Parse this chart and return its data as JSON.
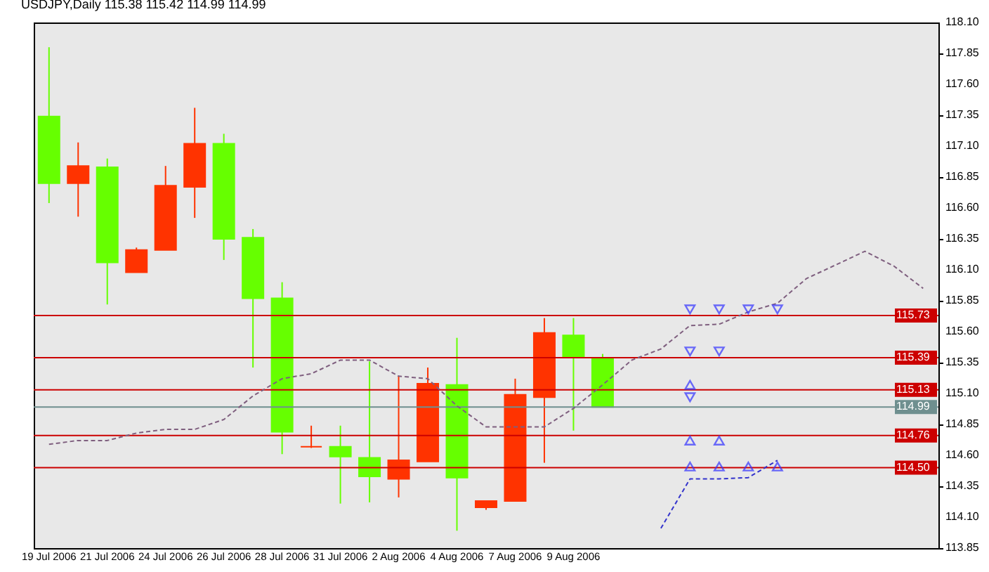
{
  "chart_data": {
    "type": "candlestick",
    "title": "USDJPY,Daily 115.38 115.42 114.99 114.99",
    "categories": [
      "19 Jul 2006",
      null,
      "21 Jul 2006",
      null,
      "24 Jul 2006",
      null,
      "26 Jul 2006",
      null,
      "28 Jul 2006",
      null,
      "31 Jul 2006",
      null,
      "2 Aug 2006",
      null,
      "4 Aug 2006",
      null,
      "7 Aug 2006",
      null,
      "9 Aug 2006",
      null,
      null,
      null,
      null,
      null,
      null,
      null,
      null,
      null,
      null,
      null,
      null
    ],
    "ohlc": [
      [
        117.34,
        117.9,
        116.64,
        116.8
      ],
      [
        116.8,
        117.13,
        116.53,
        116.94
      ],
      [
        116.93,
        117.0,
        115.82,
        116.16
      ],
      [
        116.08,
        116.28,
        116.08,
        116.26
      ],
      [
        116.26,
        116.94,
        116.26,
        116.78
      ],
      [
        116.77,
        117.41,
        116.52,
        117.12
      ],
      [
        117.12,
        117.2,
        116.18,
        116.35
      ],
      [
        116.36,
        116.43,
        115.31,
        115.87
      ],
      [
        115.87,
        116.0,
        114.61,
        114.79
      ],
      [
        114.67,
        114.84,
        114.66,
        114.67
      ],
      [
        114.67,
        114.84,
        114.21,
        114.59
      ],
      [
        114.58,
        115.36,
        114.22,
        114.43
      ],
      [
        114.41,
        115.24,
        114.26,
        114.56
      ],
      [
        114.55,
        115.31,
        114.55,
        115.18
      ],
      [
        115.17,
        115.55,
        113.99,
        114.42
      ],
      [
        114.18,
        114.23,
        114.16,
        114.23
      ],
      [
        114.23,
        115.22,
        114.23,
        115.09
      ],
      [
        115.07,
        115.71,
        114.54,
        115.59
      ],
      [
        115.57,
        115.71,
        114.8,
        115.4
      ],
      [
        115.38,
        115.42,
        114.99,
        114.99
      ],
      null,
      null,
      null,
      null,
      null,
      null,
      null,
      null,
      null,
      null,
      null
    ],
    "colors": [
      "#66ff00",
      "#ff3300",
      "#66ff00",
      "#ff3300",
      "#ff3300",
      "#ff3300",
      "#66ff00",
      "#66ff00",
      "#66ff00",
      "#ff3300",
      "#66ff00",
      "#66ff00",
      "#ff3300",
      "#ff3300",
      "#66ff00",
      "#ff3300",
      "#ff3300",
      "#ff3300",
      "#66ff00",
      "#66ff00",
      null,
      null,
      null,
      null,
      null,
      null,
      null,
      null,
      null,
      null,
      null
    ],
    "series": [
      {
        "type": "line",
        "color": "#7f5f7f",
        "line_style": "dashed",
        "values": [
          114.69,
          114.72,
          114.72,
          114.78,
          114.81,
          114.81,
          114.89,
          115.08,
          115.22,
          115.26,
          115.37,
          115.37,
          115.24,
          115.22,
          115.0,
          114.83,
          114.83,
          114.83,
          114.98,
          115.17,
          115.37,
          115.46,
          115.65,
          115.66,
          115.76,
          115.83,
          116.03,
          116.14,
          116.25,
          116.13,
          115.95
        ]
      },
      {
        "type": "line",
        "color": "#3333cc",
        "line_style": "dashed",
        "values": [
          null,
          null,
          null,
          null,
          null,
          null,
          null,
          null,
          null,
          null,
          null,
          null,
          null,
          null,
          null,
          null,
          null,
          null,
          null,
          null,
          null,
          114.01,
          114.41,
          114.41,
          114.42,
          114.56,
          null,
          null,
          null,
          null,
          null
        ]
      },
      {
        "type": "scatter",
        "color": "#3333ff",
        "marker": "triangle-down",
        "values": [
          null,
          null,
          null,
          null,
          null,
          null,
          null,
          null,
          null,
          null,
          null,
          null,
          null,
          null,
          null,
          null,
          null,
          null,
          null,
          null,
          null,
          null,
          115.78,
          115.78,
          115.78,
          115.78,
          null,
          null,
          null,
          null,
          null
        ]
      },
      {
        "type": "scatter",
        "color": "#3333ff",
        "marker": "triangle-down",
        "values": [
          null,
          null,
          null,
          null,
          null,
          null,
          null,
          null,
          null,
          null,
          null,
          null,
          null,
          null,
          null,
          null,
          null,
          null,
          null,
          null,
          null,
          null,
          115.44,
          115.44,
          null,
          null,
          null,
          null,
          null,
          null,
          null
        ]
      },
      {
        "type": "scatter",
        "color": "#3333ff",
        "marker": "triangle",
        "values": [
          null,
          null,
          null,
          null,
          null,
          null,
          null,
          null,
          null,
          null,
          null,
          null,
          null,
          null,
          null,
          null,
          null,
          null,
          null,
          null,
          null,
          null,
          115.17,
          null,
          null,
          null,
          null,
          null,
          null,
          null,
          null
        ]
      },
      {
        "type": "scatter",
        "color": "#3333ff",
        "marker": "triangle-down",
        "values": [
          null,
          null,
          null,
          null,
          null,
          null,
          null,
          null,
          null,
          null,
          null,
          null,
          null,
          null,
          null,
          null,
          null,
          null,
          null,
          null,
          null,
          null,
          115.07,
          null,
          null,
          null,
          null,
          null,
          null,
          null,
          null
        ]
      },
      {
        "type": "scatter",
        "color": "#3333ff",
        "marker": "triangle",
        "values": [
          null,
          null,
          null,
          null,
          null,
          null,
          null,
          null,
          null,
          null,
          null,
          null,
          null,
          null,
          null,
          null,
          null,
          null,
          null,
          null,
          null,
          null,
          114.72,
          114.72,
          null,
          null,
          null,
          null,
          null,
          null,
          null
        ]
      },
      {
        "type": "scatter",
        "color": "#3333ff",
        "marker": "triangle",
        "values": [
          null,
          null,
          null,
          null,
          null,
          null,
          null,
          null,
          null,
          null,
          null,
          null,
          null,
          null,
          null,
          null,
          null,
          null,
          null,
          null,
          null,
          null,
          114.51,
          114.51,
          114.51,
          114.51,
          null,
          null,
          null,
          null,
          null
        ]
      }
    ],
    "ylim": [
      113.85,
      118.1
    ],
    "yticks": [
      113.85,
      {
        "value": 114.1,
        "label": "114.10"
      },
      114.35,
      {
        "value": 114.6,
        "label": "114.60"
      },
      114.85,
      {
        "value": 115.1,
        "label": "115.10"
      },
      115.35,
      {
        "value": 115.6,
        "label": "115.60"
      },
      115.85,
      {
        "value": 116.1,
        "label": "116.10"
      },
      116.35,
      {
        "value": 116.6,
        "label": "116.60"
      },
      116.85,
      {
        "value": 117.1,
        "label": "117.10"
      },
      117.35,
      {
        "value": 117.6,
        "label": "117.60"
      },
      117.85,
      {
        "value": 118.1,
        "label": "118.10"
      }
    ],
    "ref_lines": [
      {
        "axis": "y",
        "value": 115.73,
        "label": "115.73",
        "color": "#cc0000"
      },
      {
        "axis": "y",
        "value": 115.39,
        "label": "115.39",
        "color": "#cc0000"
      },
      {
        "axis": "y",
        "value": 115.13,
        "label": "115.13",
        "color": "#cc0000"
      },
      {
        "axis": "y",
        "value": 114.99,
        "label": "114.99",
        "color": "#6f8f8f"
      },
      {
        "axis": "y",
        "value": 114.76,
        "label": "114.76",
        "color": "#cc0000"
      },
      {
        "axis": "y",
        "value": 114.5,
        "label": "114.50",
        "color": "#cc0000"
      }
    ]
  }
}
